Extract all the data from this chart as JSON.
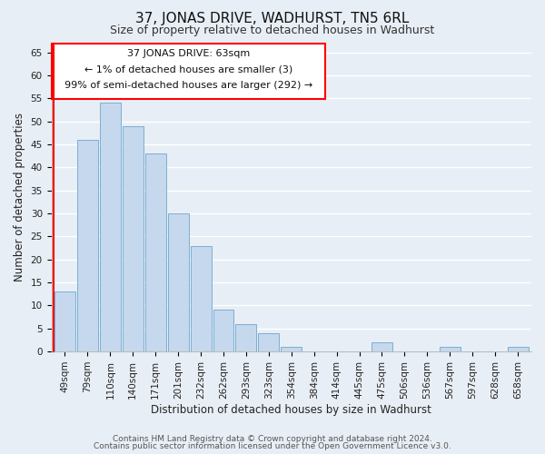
{
  "title": "37, JONAS DRIVE, WADHURST, TN5 6RL",
  "subtitle": "Size of property relative to detached houses in Wadhurst",
  "xlabel": "Distribution of detached houses by size in Wadhurst",
  "ylabel": "Number of detached properties",
  "bar_color": "#c5d8ed",
  "bar_edge_color": "#7aafd4",
  "categories": [
    "49sqm",
    "79sqm",
    "110sqm",
    "140sqm",
    "171sqm",
    "201sqm",
    "232sqm",
    "262sqm",
    "293sqm",
    "323sqm",
    "354sqm",
    "384sqm",
    "414sqm",
    "445sqm",
    "475sqm",
    "506sqm",
    "536sqm",
    "567sqm",
    "597sqm",
    "628sqm",
    "658sqm"
  ],
  "values": [
    13,
    46,
    54,
    49,
    43,
    30,
    23,
    9,
    6,
    4,
    1,
    0,
    0,
    0,
    2,
    0,
    0,
    1,
    0,
    0,
    1
  ],
  "ylim": [
    0,
    67
  ],
  "yticks": [
    0,
    5,
    10,
    15,
    20,
    25,
    30,
    35,
    40,
    45,
    50,
    55,
    60,
    65
  ],
  "annotation_title": "37 JONAS DRIVE: 63sqm",
  "annotation_line1": "← 1% of detached houses are smaller (3)",
  "annotation_line2": "99% of semi-detached houses are larger (292) →",
  "footer_line1": "Contains HM Land Registry data © Crown copyright and database right 2024.",
  "footer_line2": "Contains public sector information licensed under the Open Government Licence v3.0.",
  "background_color": "#e8eef5",
  "grid_color": "#ffffff",
  "title_fontsize": 11,
  "subtitle_fontsize": 9,
  "axis_label_fontsize": 8.5,
  "tick_fontsize": 7.5,
  "annotation_fontsize": 8,
  "footer_fontsize": 6.5
}
